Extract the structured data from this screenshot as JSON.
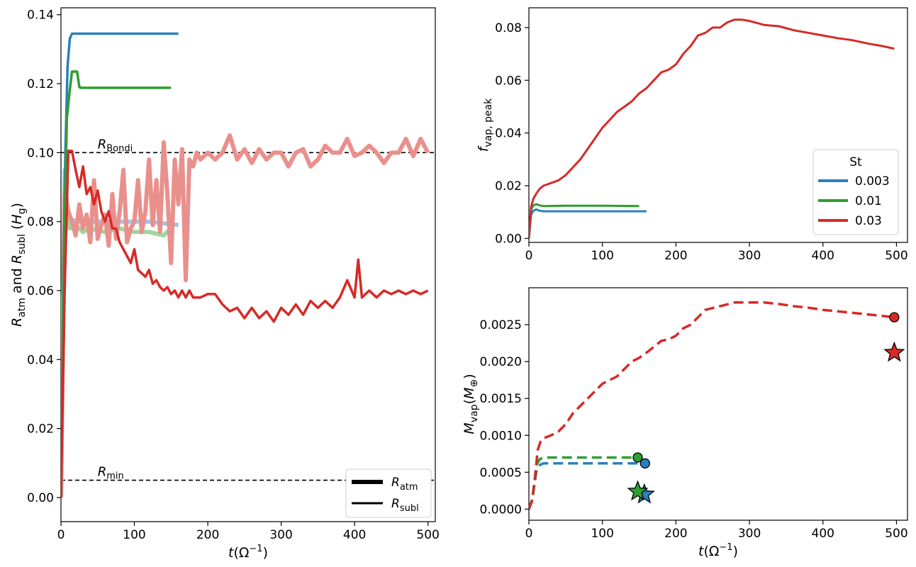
{
  "colors": {
    "st_0.003": "#2a7fc0",
    "st_0.01": "#2e9e30",
    "st_0.03": "#d62a27",
    "st_0.03_light": "#e9908c",
    "st_0.003_light": "#9ec6e8",
    "st_0.01_light": "#9fd69c"
  },
  "chart_data": [
    {
      "type": "line",
      "id": "left",
      "xlabel": "t(Ω⁻¹)",
      "ylabel": "R_atm and R_subl (H_g)",
      "xlim": [
        0,
        510
      ],
      "ylim": [
        -0.007,
        0.142
      ],
      "xticks": [
        0,
        100,
        200,
        300,
        400,
        500
      ],
      "xtick_labels": [
        "0",
        "100",
        "200",
        "300",
        "400",
        "500"
      ],
      "yticks": [
        0.0,
        0.02,
        0.04,
        0.06,
        0.08,
        0.1,
        0.12,
        0.14
      ],
      "ytick_labels": [
        "0.00",
        "0.02",
        "0.04",
        "0.06",
        "0.08",
        "0.10",
        "0.12",
        "0.14"
      ],
      "hlines": [
        {
          "y": 0.1,
          "label": "R_Bondi",
          "label_main": "R",
          "label_sub": "Bondi",
          "label_x": 50
        },
        {
          "y": 0.005,
          "label": "R_min",
          "label_main": "R",
          "label_sub": "min",
          "label_x": 50
        }
      ],
      "legend": [
        {
          "label": "R_atm",
          "label_main": "R",
          "label_sub": "atm",
          "style": "thick"
        },
        {
          "label": "R_subl",
          "label_main": "R",
          "label_sub": "subl",
          "style": "thin"
        }
      ],
      "series": [
        {
          "name": "R_atm St=0.003",
          "color_key": "st_0.003_light",
          "width": 6,
          "x": [
            0,
            5,
            8,
            12,
            20,
            40,
            80,
            120,
            160
          ],
          "y": [
            0.0,
            0.095,
            0.085,
            0.081,
            0.08,
            0.08,
            0.08,
            0.08,
            0.079
          ]
        },
        {
          "name": "R_atm St=0.01",
          "color_key": "st_0.01_light",
          "width": 6,
          "x": [
            0,
            5,
            8,
            12,
            20,
            30,
            40,
            60,
            80,
            100,
            120,
            140,
            150
          ],
          "y": [
            0.0,
            0.09,
            0.082,
            0.078,
            0.079,
            0.077,
            0.078,
            0.077,
            0.078,
            0.077,
            0.077,
            0.076,
            0.078
          ]
        },
        {
          "name": "R_atm St=0.03",
          "color_key": "st_0.03_light",
          "width": 6,
          "x": [
            0,
            5,
            10,
            15,
            20,
            25,
            30,
            35,
            40,
            45,
            50,
            55,
            60,
            65,
            70,
            75,
            80,
            85,
            90,
            95,
            100,
            105,
            110,
            115,
            120,
            125,
            130,
            135,
            140,
            145,
            150,
            155,
            160,
            165,
            170,
            175,
            180,
            185,
            190,
            200,
            210,
            220,
            230,
            240,
            250,
            260,
            270,
            280,
            290,
            300,
            310,
            320,
            330,
            340,
            350,
            360,
            370,
            380,
            390,
            400,
            410,
            420,
            430,
            440,
            450,
            460,
            470,
            480,
            490,
            500
          ],
          "y": [
            0.0,
            0.088,
            0.083,
            0.08,
            0.076,
            0.085,
            0.078,
            0.082,
            0.074,
            0.092,
            0.075,
            0.079,
            0.082,
            0.073,
            0.088,
            0.075,
            0.083,
            0.095,
            0.074,
            0.078,
            0.08,
            0.092,
            0.077,
            0.083,
            0.098,
            0.079,
            0.092,
            0.077,
            0.103,
            0.088,
            0.068,
            0.098,
            0.085,
            0.101,
            0.063,
            0.098,
            0.096,
            0.1,
            0.098,
            0.1,
            0.098,
            0.1,
            0.105,
            0.098,
            0.101,
            0.097,
            0.101,
            0.098,
            0.1,
            0.1,
            0.096,
            0.1,
            0.101,
            0.096,
            0.098,
            0.102,
            0.1,
            0.1,
            0.104,
            0.099,
            0.1,
            0.102,
            0.1,
            0.097,
            0.1,
            0.1,
            0.104,
            0.099,
            0.104,
            0.1
          ]
        },
        {
          "name": "R_subl St=0.003",
          "color_key": "st_0.003",
          "width": 3.5,
          "x": [
            0,
            3,
            6,
            9,
            12,
            15,
            20,
            40,
            80,
            120,
            160
          ],
          "y": [
            0.0,
            0.06,
            0.1,
            0.125,
            0.133,
            0.1345,
            0.1345,
            0.1345,
            0.1345,
            0.1345,
            0.1345
          ]
        },
        {
          "name": "R_subl St=0.01",
          "color_key": "st_0.01",
          "width": 3.5,
          "x": [
            0,
            4,
            8,
            12,
            15,
            22,
            25,
            28,
            40,
            60,
            100,
            150
          ],
          "y": [
            0.0,
            0.07,
            0.11,
            0.118,
            0.1235,
            0.1235,
            0.119,
            0.1188,
            0.1188,
            0.1188,
            0.1188,
            0.1188
          ]
        },
        {
          "name": "R_subl St=0.03",
          "color_key": "st_0.03",
          "width": 3.5,
          "x": [
            0,
            5,
            10,
            15,
            20,
            25,
            30,
            35,
            40,
            45,
            50,
            55,
            60,
            65,
            70,
            75,
            80,
            85,
            90,
            95,
            100,
            105,
            110,
            115,
            120,
            125,
            130,
            135,
            140,
            145,
            150,
            155,
            160,
            165,
            170,
            175,
            180,
            190,
            200,
            210,
            220,
            230,
            240,
            250,
            260,
            270,
            280,
            290,
            300,
            310,
            320,
            330,
            340,
            350,
            360,
            370,
            380,
            390,
            400,
            405,
            410,
            420,
            430,
            440,
            450,
            460,
            470,
            480,
            490,
            500
          ],
          "y": [
            0.0,
            0.06,
            0.1005,
            0.1005,
            0.095,
            0.09,
            0.096,
            0.088,
            0.09,
            0.085,
            0.089,
            0.083,
            0.08,
            0.083,
            0.078,
            0.078,
            0.074,
            0.072,
            0.07,
            0.068,
            0.072,
            0.066,
            0.065,
            0.064,
            0.066,
            0.062,
            0.063,
            0.061,
            0.06,
            0.061,
            0.059,
            0.06,
            0.058,
            0.06,
            0.058,
            0.06,
            0.058,
            0.058,
            0.059,
            0.059,
            0.056,
            0.054,
            0.055,
            0.052,
            0.055,
            0.052,
            0.054,
            0.051,
            0.055,
            0.053,
            0.056,
            0.053,
            0.057,
            0.055,
            0.057,
            0.055,
            0.058,
            0.063,
            0.058,
            0.069,
            0.058,
            0.06,
            0.058,
            0.06,
            0.059,
            0.06,
            0.059,
            0.06,
            0.059,
            0.06
          ]
        }
      ]
    },
    {
      "type": "line",
      "id": "top-right",
      "xlabel": "",
      "ylabel": "f_vap, peak",
      "xlim": [
        0,
        515
      ],
      "ylim": [
        -0.0015,
        0.0875
      ],
      "xticks": [
        0,
        100,
        200,
        300,
        400,
        500
      ],
      "xtick_labels": [
        "0",
        "100",
        "200",
        "300",
        "400",
        "500"
      ],
      "yticks": [
        0.0,
        0.02,
        0.04,
        0.06,
        0.08
      ],
      "ytick_labels": [
        "0.00",
        "0.02",
        "0.04",
        "0.06",
        "0.08"
      ],
      "legend_title": "St",
      "legend": [
        {
          "label": "0.003",
          "color_key": "st_0.003"
        },
        {
          "label": "0.01",
          "color_key": "st_0.01"
        },
        {
          "label": "0.03",
          "color_key": "st_0.03"
        }
      ],
      "series": [
        {
          "name": "St=0.003",
          "color_key": "st_0.003",
          "width": 3,
          "x": [
            0,
            3,
            6,
            10,
            15,
            20,
            50,
            100,
            160
          ],
          "y": [
            0.0,
            0.009,
            0.0105,
            0.011,
            0.0105,
            0.0103,
            0.0103,
            0.0103,
            0.0103
          ]
        },
        {
          "name": "St=0.01",
          "color_key": "st_0.01",
          "width": 3,
          "x": [
            0,
            3,
            6,
            10,
            15,
            20,
            50,
            100,
            150
          ],
          "y": [
            0.0,
            0.011,
            0.0125,
            0.013,
            0.0125,
            0.0123,
            0.0124,
            0.0124,
            0.0123
          ]
        },
        {
          "name": "St=0.03",
          "color_key": "st_0.03",
          "width": 3,
          "x": [
            0,
            3,
            6,
            10,
            15,
            20,
            30,
            40,
            50,
            60,
            70,
            80,
            90,
            100,
            110,
            120,
            130,
            140,
            150,
            160,
            170,
            180,
            190,
            200,
            210,
            220,
            230,
            240,
            250,
            260,
            270,
            280,
            290,
            300,
            320,
            340,
            360,
            380,
            400,
            420,
            440,
            460,
            480,
            497
          ],
          "y": [
            0.0,
            0.012,
            0.015,
            0.017,
            0.019,
            0.02,
            0.021,
            0.022,
            0.024,
            0.027,
            0.03,
            0.034,
            0.038,
            0.042,
            0.045,
            0.048,
            0.05,
            0.052,
            0.055,
            0.057,
            0.06,
            0.063,
            0.064,
            0.066,
            0.07,
            0.073,
            0.077,
            0.078,
            0.08,
            0.08,
            0.082,
            0.083,
            0.083,
            0.0825,
            0.081,
            0.0805,
            0.079,
            0.078,
            0.077,
            0.076,
            0.0752,
            0.074,
            0.073,
            0.072
          ]
        }
      ]
    },
    {
      "type": "line",
      "id": "bottom-right",
      "xlabel": "t(Ω⁻¹)",
      "ylabel": "M_vap(M_⊕)",
      "xlim": [
        0,
        515
      ],
      "ylim": [
        -0.00015,
        0.003
      ],
      "xticks": [
        0,
        100,
        200,
        300,
        400,
        500
      ],
      "xtick_labels": [
        "0",
        "100",
        "200",
        "300",
        "400",
        "500"
      ],
      "yticks": [
        0.0,
        0.0005,
        0.001,
        0.0015,
        0.002,
        0.0025
      ],
      "ytick_labels": [
        "0.0000",
        "0.0005",
        "0.0010",
        "0.0015",
        "0.0020",
        "0.0025"
      ],
      "series": [
        {
          "name": "St=0.003",
          "color_key": "st_0.003",
          "width": 3.5,
          "dash": "14,7",
          "x": [
            0,
            5,
            10,
            15,
            20,
            60,
            100,
            140,
            158
          ],
          "y": [
            0.0,
            0.00015,
            0.0005,
            0.0006,
            0.00062,
            0.00062,
            0.00062,
            0.00062,
            0.00062
          ]
        },
        {
          "name": "St=0.01",
          "color_key": "st_0.01",
          "width": 3.5,
          "dash": "14,7",
          "x": [
            0,
            5,
            10,
            15,
            20,
            60,
            100,
            148
          ],
          "y": [
            0.0,
            0.00015,
            0.0006,
            0.00068,
            0.0007,
            0.0007,
            0.0007,
            0.0007
          ]
        },
        {
          "name": "St=0.03",
          "color_key": "st_0.03",
          "width": 3.5,
          "dash": "14,7",
          "x": [
            0,
            4,
            8,
            12,
            16,
            20,
            30,
            40,
            50,
            60,
            70,
            80,
            90,
            100,
            110,
            120,
            130,
            140,
            150,
            160,
            170,
            180,
            190,
            200,
            210,
            220,
            230,
            240,
            260,
            280,
            300,
            320,
            340,
            360,
            380,
            400,
            420,
            440,
            460,
            480,
            497
          ],
          "y": [
            0.0,
            0.0001,
            0.0004,
            0.0008,
            0.00092,
            0.00096,
            0.001,
            0.00105,
            0.00115,
            0.0013,
            0.0014,
            0.0015,
            0.0016,
            0.0017,
            0.00175,
            0.0018,
            0.0019,
            0.002,
            0.00205,
            0.00212,
            0.0022,
            0.00228,
            0.0023,
            0.00235,
            0.00245,
            0.0025,
            0.0026,
            0.0027,
            0.00275,
            0.0028,
            0.0028,
            0.0028,
            0.00278,
            0.00275,
            0.00273,
            0.0027,
            0.00268,
            0.00266,
            0.00264,
            0.00262,
            0.0026
          ]
        }
      ],
      "markers": [
        {
          "shape": "circle",
          "color_key": "st_0.003",
          "x": 158,
          "y": 0.00062
        },
        {
          "shape": "circle",
          "color_key": "st_0.01",
          "x": 148,
          "y": 0.0007
        },
        {
          "shape": "circle",
          "color_key": "st_0.03",
          "x": 497,
          "y": 0.0026
        },
        {
          "shape": "star",
          "color_key": "st_0.003",
          "x": 157,
          "y": 0.0002
        },
        {
          "shape": "star",
          "color_key": "st_0.01",
          "x": 148,
          "y": 0.00024
        },
        {
          "shape": "star",
          "color_key": "st_0.03",
          "x": 497,
          "y": 0.00212
        }
      ]
    }
  ]
}
